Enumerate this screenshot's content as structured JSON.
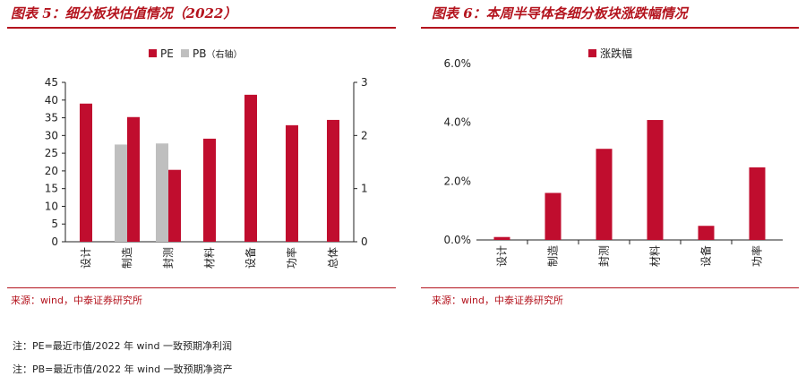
{
  "left_panel": {
    "title": "图表 5：细分板块估值情况（2022）",
    "source": "来源：wind，中泰证券研究所"
  },
  "right_panel": {
    "title": "图表 6：本周半导体各细分板块涨跌幅情况",
    "source": "来源：wind，中泰证券研究所"
  },
  "notes": [
    "注：PE=最近市值/2022 年 wind 一致预期净利润",
    "注：PB=最近市值/2022 年 wind 一致预期净资产"
  ],
  "colors": {
    "pe": "#c00d2e",
    "pb": "#bfbfbf",
    "accent": "#b4141e"
  },
  "chart_data": [
    {
      "type": "bar",
      "categories": [
        "设计",
        "制造",
        "封测",
        "材料",
        "设备",
        "功率",
        "总体"
      ],
      "series": [
        {
          "name": "PE",
          "axis": "left",
          "values": [
            39,
            35.2,
            20.3,
            29.1,
            41.5,
            32.9,
            34.4
          ]
        },
        {
          "name": "PB",
          "axis": "right",
          "values": [
            null,
            1.83,
            1.85,
            null,
            null,
            null,
            null
          ]
        }
      ],
      "legend_pe": "PE",
      "legend_pb": "PB",
      "legend_pb_suffix": "（右轴）",
      "ylim": [
        0,
        45
      ],
      "yticks": [
        "0",
        "5",
        "10",
        "15",
        "20",
        "25",
        "30",
        "35",
        "40",
        "45"
      ],
      "y2lim": [
        0,
        3
      ],
      "y2ticks": [
        "0",
        "1",
        "2",
        "3"
      ],
      "title": "",
      "xlabel": "",
      "ylabel": ""
    },
    {
      "type": "bar",
      "categories": [
        "设计",
        "制造",
        "封测",
        "材料",
        "设备",
        "功率"
      ],
      "series": [
        {
          "name": "涨跌幅",
          "values": [
            0.1,
            1.6,
            3.1,
            4.08,
            0.48,
            2.47
          ]
        }
      ],
      "legend": "涨跌幅",
      "ylim": [
        0,
        6
      ],
      "yticks": [
        "0.0%",
        "2.0%",
        "4.0%",
        "6.0%"
      ],
      "title": "",
      "xlabel": "",
      "ylabel": ""
    }
  ]
}
